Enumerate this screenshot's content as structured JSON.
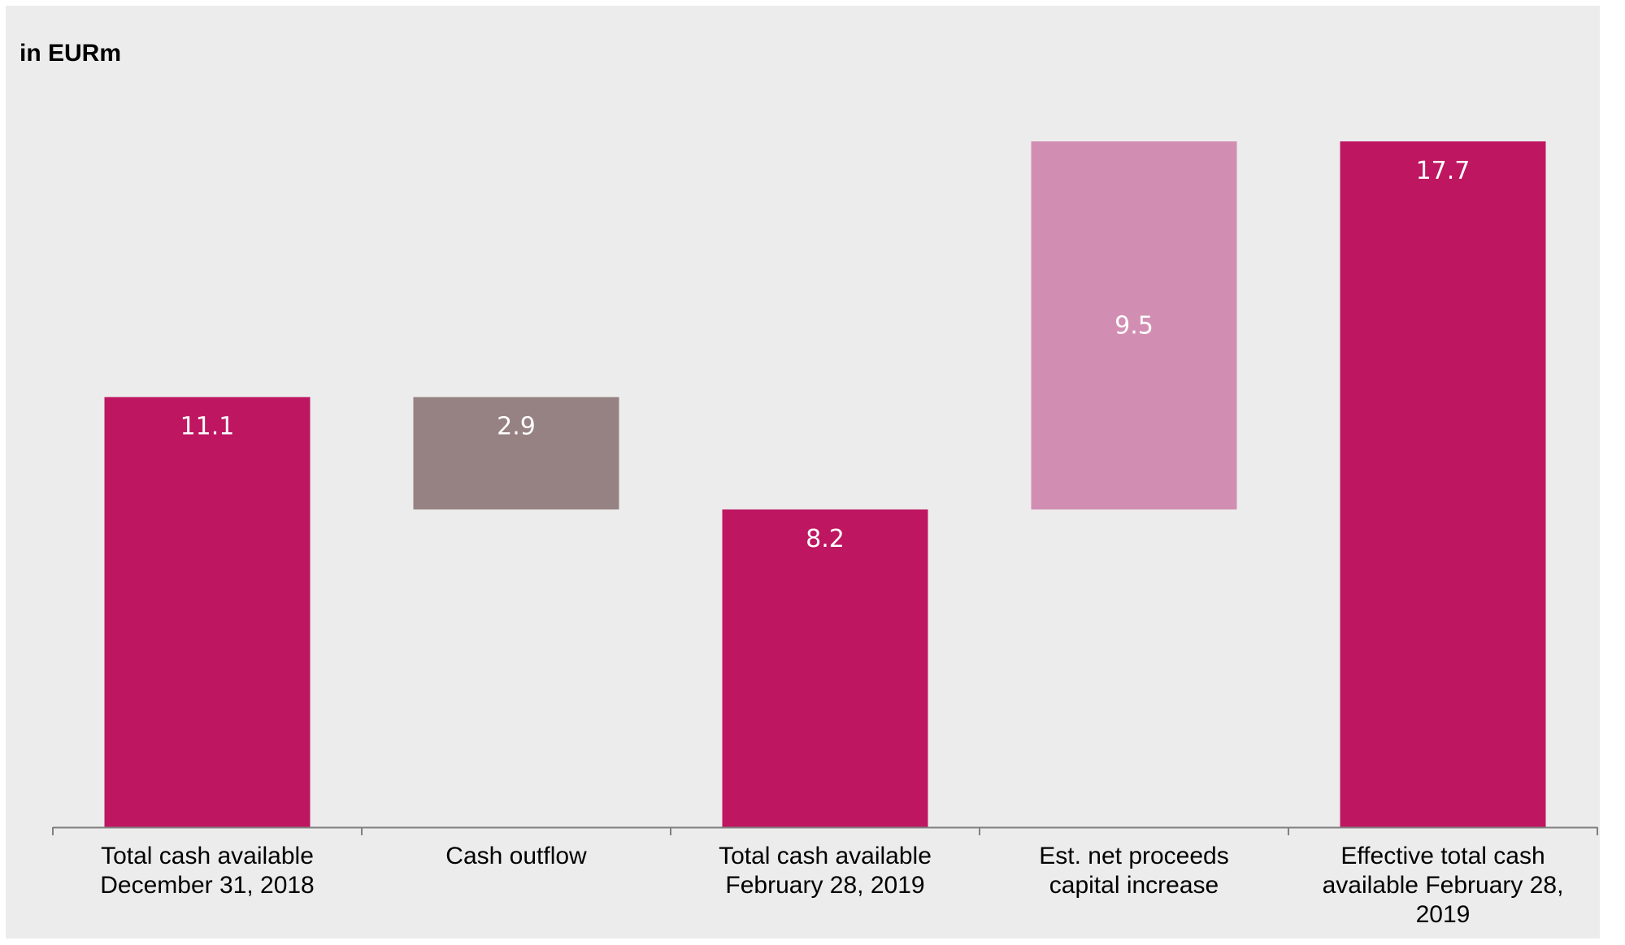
{
  "unit_label": "in EURm",
  "colors": {
    "total": "#be1661",
    "outflow": "#968282",
    "inflow": "#d28eb2",
    "background": "#ececec",
    "axis": "#808080"
  },
  "chart_data": {
    "type": "bar",
    "subtype": "waterfall",
    "title": "",
    "ylabel": "in EURm",
    "ylim": [
      0,
      17.7
    ],
    "categories": [
      "Total cash available December 31, 2018",
      "Cash outflow",
      "Total cash available February 28, 2019",
      "Est. net proceeds capital increase",
      "Effective total cash available February 28, 2019"
    ],
    "label_lines": [
      [
        "Total cash available",
        "December 31, 2018"
      ],
      [
        "Cash outflow"
      ],
      [
        "Total cash available",
        "February 28, 2019"
      ],
      [
        "Est. net proceeds",
        "capital increase"
      ],
      [
        "Effective total cash",
        "available February 28,",
        "2019"
      ]
    ],
    "values": [
      11.1,
      -2.9,
      8.2,
      9.5,
      17.7
    ],
    "value_labels": [
      "11.1",
      "2.9",
      "8.2",
      "9.5",
      "17.7"
    ],
    "bar_kinds": [
      "total",
      "outflow",
      "total",
      "inflow",
      "total"
    ],
    "grid": false,
    "legend": "none"
  }
}
